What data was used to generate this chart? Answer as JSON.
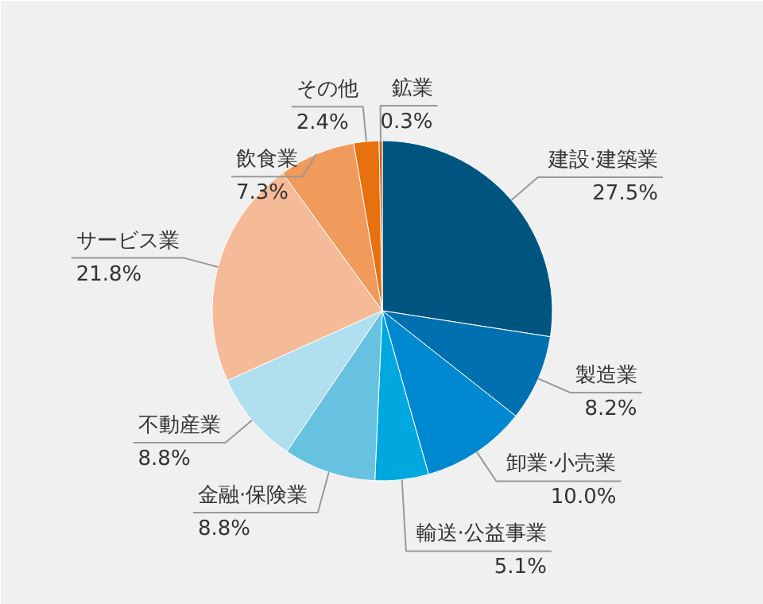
{
  "chart_data": {
    "type": "pie",
    "categories": [
      "建設·建築業",
      "製造業",
      "卸業·小売業",
      "輸送·公益事業",
      "金融·保険業",
      "不動産業",
      "サービス業",
      "飲食業",
      "その他",
      "鉱業"
    ],
    "values": [
      27.5,
      8.2,
      10.0,
      5.1,
      8.8,
      8.8,
      21.8,
      7.3,
      2.4,
      0.3
    ],
    "value_labels": [
      "27.5%",
      "8.2%",
      "10.0%",
      "5.1%",
      "8.8%",
      "8.8%",
      "21.8%",
      "7.3%",
      "2.4%",
      "0.3%"
    ],
    "colors": [
      "#005580",
      "#0070b0",
      "#0088d0",
      "#00a8e0",
      "#66c2e0",
      "#b0dff0",
      "#f5bb98",
      "#f09a5c",
      "#e8700f",
      "#d95f10"
    ]
  }
}
